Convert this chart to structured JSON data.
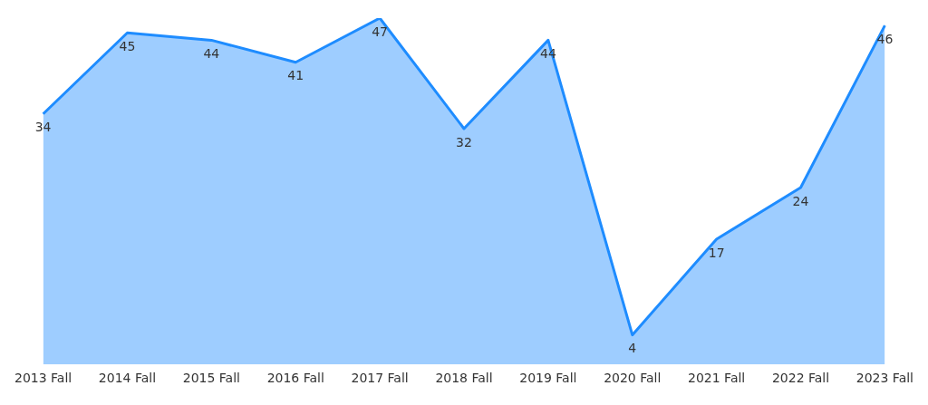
{
  "chart_data": {
    "type": "area",
    "categories": [
      "2013 Fall",
      "2014 Fall",
      "2015 Fall",
      "2016 Fall",
      "2017 Fall",
      "2018 Fall",
      "2019 Fall",
      "2020 Fall",
      "2021 Fall",
      "2022 Fall",
      "2023 Fall"
    ],
    "series": [
      {
        "color": "#1e8cff",
        "values": [
          34,
          45,
          44,
          41,
          47,
          32,
          44,
          4,
          17,
          24,
          46
        ]
      }
    ],
    "data_labels": true,
    "grid": false,
    "legend": false,
    "tick_labels": "x"
  }
}
